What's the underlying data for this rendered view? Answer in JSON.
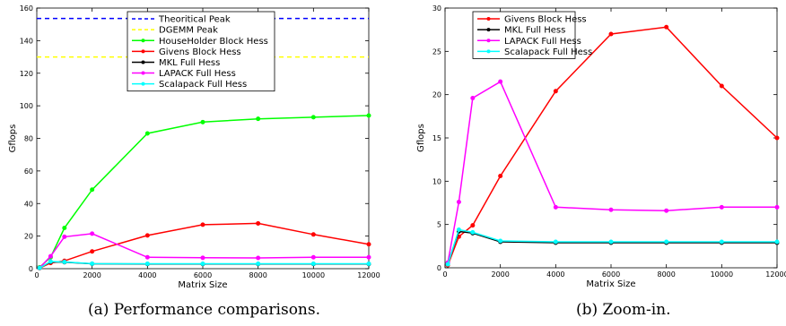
{
  "chart_data": [
    {
      "type": "line",
      "title": "",
      "xlabel": "Matrix Size",
      "ylabel": "Gflops",
      "caption": "(a) Performance comparisons.",
      "xlim": [
        0,
        12000
      ],
      "ylim": [
        0,
        160
      ],
      "xticks": [
        0,
        2000,
        4000,
        6000,
        8000,
        10000,
        12000
      ],
      "yticks": [
        0,
        20,
        40,
        60,
        80,
        100,
        120,
        140,
        160
      ],
      "legend_position": "top-center",
      "series": [
        {
          "name": "Theoritical Peak",
          "color": "#0000ff",
          "style": "dashed",
          "marker": false,
          "x": [
            0,
            12000
          ],
          "y": [
            153.6,
            153.6
          ]
        },
        {
          "name": "DGEMM Peak",
          "color": "#ffff00",
          "style": "dashed",
          "marker": false,
          "x": [
            0,
            12000
          ],
          "y": [
            130,
            130
          ]
        },
        {
          "name": "HouseHolder Block Hess",
          "color": "#00ff00",
          "style": "solid",
          "marker": true,
          "x": [
            100,
            500,
            1000,
            2000,
            4000,
            6000,
            8000,
            10000,
            12000
          ],
          "y": [
            0.8,
            7,
            25,
            48.5,
            83,
            90,
            92,
            93,
            94
          ]
        },
        {
          "name": "Givens Block Hess",
          "color": "#ff0000",
          "style": "solid",
          "marker": true,
          "x": [
            100,
            500,
            1000,
            2000,
            4000,
            6000,
            8000,
            10000,
            12000
          ],
          "y": [
            0.3,
            3.5,
            4.8,
            10.6,
            20.4,
            27,
            27.8,
            21,
            15
          ]
        },
        {
          "name": "MKL Full Hess",
          "color": "#000000",
          "style": "solid",
          "marker": true,
          "x": [
            100,
            500,
            1000,
            2000,
            4000,
            6000,
            8000,
            10000,
            12000
          ],
          "y": [
            0.5,
            4.2,
            4,
            3,
            2.9,
            2.9,
            2.9,
            2.9,
            2.9
          ]
        },
        {
          "name": "LAPACK Full Hess",
          "color": "#ff00ff",
          "style": "solid",
          "marker": true,
          "x": [
            100,
            500,
            1000,
            2000,
            4000,
            6000,
            8000,
            10000,
            12000
          ],
          "y": [
            0.5,
            7.6,
            19.6,
            21.5,
            7,
            6.7,
            6.6,
            7,
            7
          ]
        },
        {
          "name": "Scalapack Full Hess",
          "color": "#00ffff",
          "style": "solid",
          "marker": true,
          "x": [
            100,
            500,
            1000,
            2000,
            4000,
            6000,
            8000,
            10000,
            12000
          ],
          "y": [
            0.4,
            4.4,
            4.1,
            3.1,
            3,
            3,
            3,
            3,
            3
          ]
        }
      ]
    },
    {
      "type": "line",
      "title": "",
      "xlabel": "Matrix Size",
      "ylabel": "Gflops",
      "caption": "(b) Zoom-in.",
      "xlim": [
        0,
        12000
      ],
      "ylim": [
        0,
        30
      ],
      "xticks": [
        0,
        2000,
        4000,
        6000,
        8000,
        10000,
        12000
      ],
      "yticks": [
        0,
        5,
        10,
        15,
        20,
        25,
        30
      ],
      "legend_position": "top-right",
      "series": [
        {
          "name": "Givens Block Hess",
          "color": "#ff0000",
          "style": "solid",
          "marker": true,
          "x": [
            100,
            500,
            1000,
            2000,
            4000,
            6000,
            8000,
            10000,
            12000
          ],
          "y": [
            0.3,
            3.6,
            4.9,
            10.6,
            20.4,
            27,
            27.8,
            21,
            15
          ]
        },
        {
          "name": "MKL Full Hess",
          "color": "#000000",
          "style": "solid",
          "marker": true,
          "x": [
            100,
            500,
            1000,
            2000,
            4000,
            6000,
            8000,
            10000,
            12000
          ],
          "y": [
            0.5,
            4.2,
            4,
            3,
            2.9,
            2.9,
            2.9,
            2.9,
            2.9
          ]
        },
        {
          "name": "LAPACK Full Hess",
          "color": "#ff00ff",
          "style": "solid",
          "marker": true,
          "x": [
            100,
            500,
            1000,
            2000,
            4000,
            6000,
            8000,
            10000,
            12000
          ],
          "y": [
            0.6,
            7.6,
            19.6,
            21.5,
            7,
            6.7,
            6.6,
            7,
            7
          ]
        },
        {
          "name": "Scalapack Full Hess",
          "color": "#00ffff",
          "style": "solid",
          "marker": true,
          "x": [
            100,
            500,
            1000,
            2000,
            4000,
            6000,
            8000,
            10000,
            12000
          ],
          "y": [
            0.4,
            4.4,
            4.1,
            3.1,
            3,
            3,
            3,
            3,
            3
          ]
        }
      ]
    }
  ]
}
